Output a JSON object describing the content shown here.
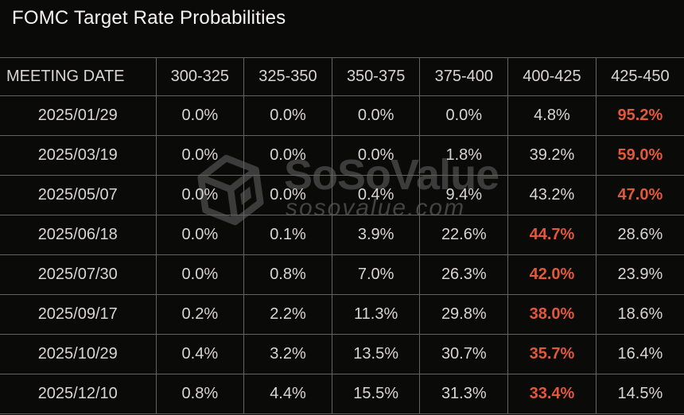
{
  "title": "FOMC Target Rate Probabilities",
  "watermark": {
    "logo_icon": "soso-cube-logo",
    "name": "SoSoValue",
    "domain": "sosovalue.com"
  },
  "colors": {
    "background": "#0a0a09",
    "grid_border": "#636361",
    "cell_text": "#d8d6d3",
    "title_text": "#f5f4f1",
    "highlight_orange": "#e2583a",
    "watermark_gray": "#3c3c3c"
  },
  "table": {
    "columns": [
      "MEETING DATE",
      "300-325",
      "325-350",
      "350-375",
      "375-400",
      "400-425",
      "425-450"
    ],
    "rows": [
      {
        "date": "2025/01/29",
        "values": [
          "0.0%",
          "0.0%",
          "0.0%",
          "0.0%",
          "4.8%",
          "95.2%"
        ],
        "highlight_index": 5
      },
      {
        "date": "2025/03/19",
        "values": [
          "0.0%",
          "0.0%",
          "0.0%",
          "1.8%",
          "39.2%",
          "59.0%"
        ],
        "highlight_index": 5
      },
      {
        "date": "2025/05/07",
        "values": [
          "0.0%",
          "0.0%",
          "0.4%",
          "9.4%",
          "43.2%",
          "47.0%"
        ],
        "highlight_index": 5
      },
      {
        "date": "2025/06/18",
        "values": [
          "0.0%",
          "0.1%",
          "3.9%",
          "22.6%",
          "44.7%",
          "28.6%"
        ],
        "highlight_index": 4
      },
      {
        "date": "2025/07/30",
        "values": [
          "0.0%",
          "0.8%",
          "7.0%",
          "26.3%",
          "42.0%",
          "23.9%"
        ],
        "highlight_index": 4
      },
      {
        "date": "2025/09/17",
        "values": [
          "0.2%",
          "2.2%",
          "11.3%",
          "29.8%",
          "38.0%",
          "18.6%"
        ],
        "highlight_index": 4
      },
      {
        "date": "2025/10/29",
        "values": [
          "0.4%",
          "3.2%",
          "13.5%",
          "30.7%",
          "35.7%",
          "16.4%"
        ],
        "highlight_index": 4
      },
      {
        "date": "2025/12/10",
        "values": [
          "0.8%",
          "4.4%",
          "15.5%",
          "31.3%",
          "33.4%",
          "14.5%"
        ],
        "highlight_index": 4
      }
    ]
  },
  "chart_data": {
    "type": "table",
    "title": "FOMC Target Rate Probabilities",
    "units": "%",
    "columns": [
      "MEETING DATE",
      "300-325",
      "325-350",
      "350-375",
      "375-400",
      "400-425",
      "425-450"
    ],
    "rows": [
      [
        "2025/01/29",
        0.0,
        0.0,
        0.0,
        0.0,
        4.8,
        95.2
      ],
      [
        "2025/03/19",
        0.0,
        0.0,
        0.0,
        1.8,
        39.2,
        59.0
      ],
      [
        "2025/05/07",
        0.0,
        0.0,
        0.4,
        9.4,
        43.2,
        47.0
      ],
      [
        "2025/06/18",
        0.0,
        0.1,
        3.9,
        22.6,
        44.7,
        28.6
      ],
      [
        "2025/07/30",
        0.0,
        0.8,
        7.0,
        26.3,
        42.0,
        23.9
      ],
      [
        "2025/09/17",
        0.2,
        2.2,
        11.3,
        29.8,
        38.0,
        18.6
      ],
      [
        "2025/10/29",
        0.4,
        3.2,
        13.5,
        30.7,
        35.7,
        16.4
      ],
      [
        "2025/12/10",
        0.8,
        4.4,
        15.5,
        31.3,
        33.4,
        14.5
      ]
    ],
    "highlighted_max_per_row": [
      {
        "date": "2025/01/29",
        "bucket": "425-450",
        "value": 95.2
      },
      {
        "date": "2025/03/19",
        "bucket": "425-450",
        "value": 59.0
      },
      {
        "date": "2025/05/07",
        "bucket": "425-450",
        "value": 47.0
      },
      {
        "date": "2025/06/18",
        "bucket": "400-425",
        "value": 44.7
      },
      {
        "date": "2025/07/30",
        "bucket": "400-425",
        "value": 42.0
      },
      {
        "date": "2025/09/17",
        "bucket": "400-425",
        "value": 38.0
      },
      {
        "date": "2025/10/29",
        "bucket": "400-425",
        "value": 35.7
      },
      {
        "date": "2025/12/10",
        "bucket": "400-425",
        "value": 33.4
      }
    ]
  }
}
